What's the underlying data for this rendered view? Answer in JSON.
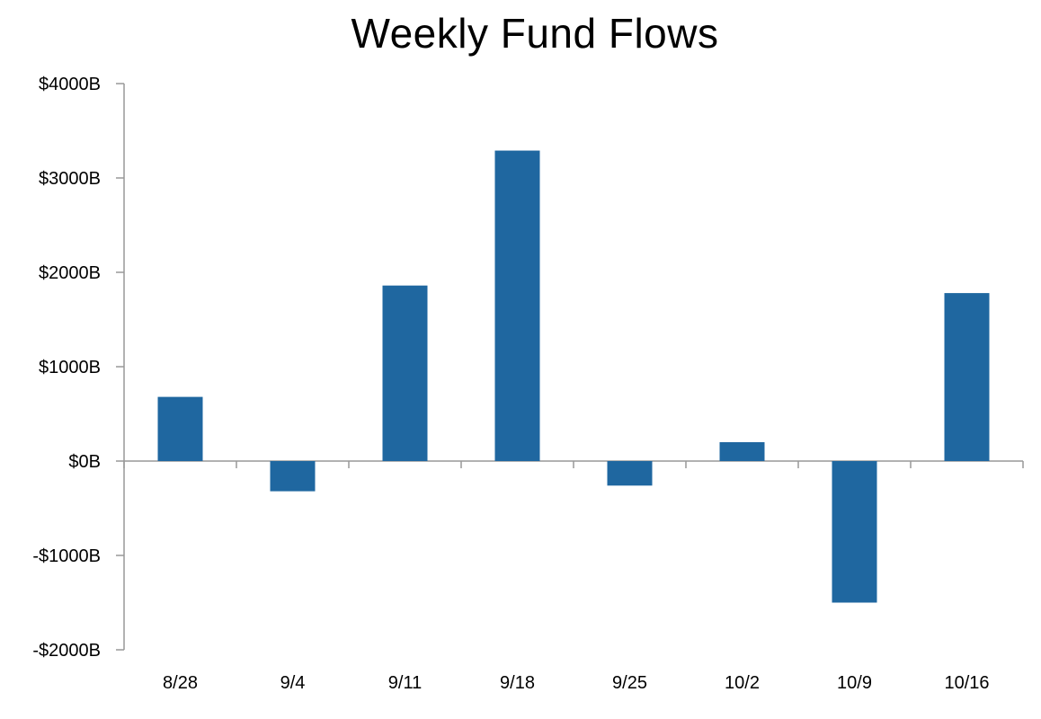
{
  "chart_data": {
    "type": "bar",
    "title": "Weekly Fund Flows",
    "xlabel": "",
    "ylabel": "",
    "categories": [
      "8/28",
      "9/4",
      "9/11",
      "9/18",
      "9/25",
      "10/2",
      "10/9",
      "10/16"
    ],
    "values": [
      680,
      -320,
      1860,
      3290,
      -260,
      200,
      -1500,
      1780
    ],
    "ylim": [
      -2000,
      4000
    ],
    "yticks": [
      4000,
      3000,
      2000,
      1000,
      0,
      -1000,
      -2000
    ],
    "ytick_labels": [
      "$4000B",
      "$3000B",
      "$2000B",
      "$1000B",
      "$0B",
      "-$1000B",
      "-$2000B"
    ],
    "grid": false,
    "legend": "none",
    "bar_color": "#1f67a0",
    "axis_color": "#999999"
  }
}
